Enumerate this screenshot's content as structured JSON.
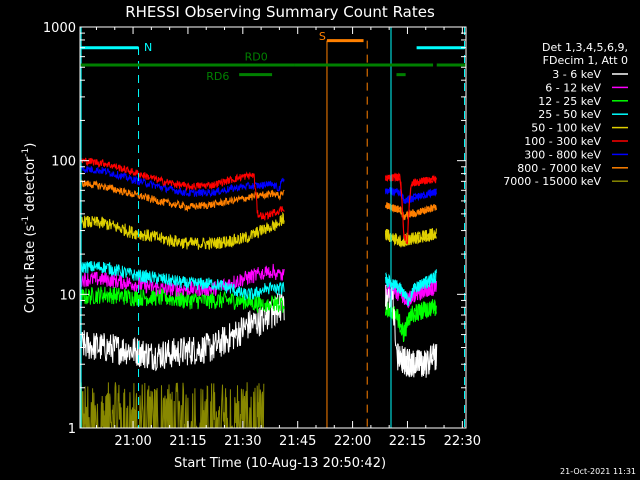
{
  "chart_data": {
    "type": "line",
    "title": "RHESSI Observing Summary Count Rates",
    "xlabel": "Start Time (10-Aug-13 20:50:42)",
    "ylabel_main": "Count Rate (s",
    "ylabel_sup1": "-1",
    "ylabel_mid": " detector",
    "ylabel_sup2": "-1",
    "ylabel_end": ")",
    "y_scale": "log",
    "ylim": [
      1,
      1000
    ],
    "xlim_minutes_from_2100": [
      -14.5,
      91
    ],
    "x_ticks": [
      {
        "label": "21:00",
        "minutes": 0
      },
      {
        "label": "21:15",
        "minutes": 15
      },
      {
        "label": "21:30",
        "minutes": 30
      },
      {
        "label": "21:45",
        "minutes": 45
      },
      {
        "label": "22:00",
        "minutes": 60
      },
      {
        "label": "22:15",
        "minutes": 75
      },
      {
        "label": "22:30",
        "minutes": 90
      }
    ],
    "y_ticks": [
      {
        "label": "1",
        "value": 1
      },
      {
        "label": "10",
        "value": 10
      },
      {
        "label": "100",
        "value": 100
      },
      {
        "label": "1000",
        "value": 1000
      }
    ],
    "legend_header": [
      "Det 1,3,4,5,6,9,",
      "FDecim 1, Att 0"
    ],
    "legend_placement": "right",
    "series": [
      {
        "name": "3 - 6 keV",
        "color": "#ffffff"
      },
      {
        "name": "6 - 12 keV",
        "color": "#ff00ff"
      },
      {
        "name": "12 - 25 keV",
        "color": "#00ff00"
      },
      {
        "name": "25 - 50 keV",
        "color": "#00ffff"
      },
      {
        "name": "50 - 100 keV",
        "color": "#e0d000"
      },
      {
        "name": "100 - 300 keV",
        "color": "#ff0000"
      },
      {
        "name": "300 - 800 keV",
        "color": "#0000ff"
      },
      {
        "name": "800 - 7000 keV",
        "color": "#ff8000"
      },
      {
        "name": "7000 - 15000 keV",
        "color": "#888800"
      }
    ],
    "annotations": {
      "night_label": "N",
      "saa_label": "S",
      "rd0_label": "RD0",
      "rd6_label": "RD6"
    },
    "timestamp": "21-Oct-2021 11:31"
  }
}
